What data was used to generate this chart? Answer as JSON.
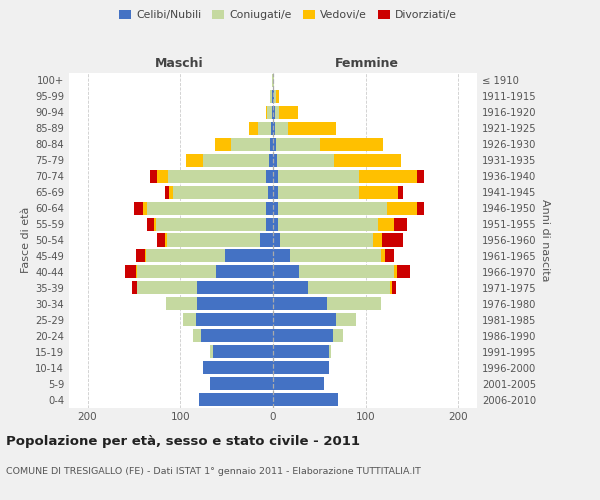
{
  "age_groups": [
    "0-4",
    "5-9",
    "10-14",
    "15-19",
    "20-24",
    "25-29",
    "30-34",
    "35-39",
    "40-44",
    "45-49",
    "50-54",
    "55-59",
    "60-64",
    "65-69",
    "70-74",
    "75-79",
    "80-84",
    "85-89",
    "90-94",
    "95-99",
    "100+"
  ],
  "birth_years": [
    "2006-2010",
    "2001-2005",
    "1996-2000",
    "1991-1995",
    "1986-1990",
    "1981-1985",
    "1976-1980",
    "1971-1975",
    "1966-1970",
    "1961-1965",
    "1956-1960",
    "1951-1955",
    "1946-1950",
    "1941-1945",
    "1936-1940",
    "1931-1935",
    "1926-1930",
    "1921-1925",
    "1916-1920",
    "1911-1915",
    "≤ 1910"
  ],
  "male": {
    "celibi": [
      80,
      68,
      75,
      65,
      78,
      83,
      82,
      82,
      62,
      52,
      14,
      8,
      8,
      5,
      8,
      4,
      3,
      2,
      1,
      1,
      0
    ],
    "coniugati": [
      0,
      0,
      0,
      3,
      8,
      14,
      33,
      65,
      85,
      85,
      100,
      118,
      128,
      103,
      105,
      72,
      42,
      14,
      5,
      2,
      1
    ],
    "vedovi": [
      0,
      0,
      0,
      0,
      0,
      0,
      0,
      0,
      1,
      1,
      2,
      2,
      4,
      4,
      12,
      18,
      18,
      10,
      2,
      0,
      0
    ],
    "divorziati": [
      0,
      0,
      0,
      0,
      0,
      0,
      0,
      5,
      12,
      10,
      9,
      8,
      10,
      5,
      8,
      0,
      0,
      0,
      0,
      0,
      0
    ]
  },
  "female": {
    "nubili": [
      70,
      55,
      60,
      60,
      65,
      68,
      58,
      38,
      28,
      18,
      8,
      5,
      5,
      5,
      5,
      4,
      3,
      2,
      2,
      1,
      0
    ],
    "coniugate": [
      0,
      0,
      0,
      3,
      10,
      22,
      58,
      88,
      103,
      98,
      100,
      108,
      118,
      88,
      88,
      62,
      48,
      14,
      5,
      2,
      1
    ],
    "vedove": [
      0,
      0,
      0,
      0,
      0,
      0,
      0,
      2,
      3,
      5,
      10,
      18,
      32,
      42,
      62,
      72,
      68,
      52,
      20,
      3,
      0
    ],
    "divorziate": [
      0,
      0,
      0,
      0,
      0,
      0,
      0,
      5,
      14,
      10,
      22,
      14,
      8,
      5,
      8,
      0,
      0,
      0,
      0,
      0,
      0
    ]
  },
  "colors": {
    "celibi": "#4472c4",
    "coniugati": "#c5d9a0",
    "vedovi": "#ffc000",
    "divorziati": "#cc0000"
  },
  "title": "Popolazione per età, sesso e stato civile - 2011",
  "subtitle": "COMUNE DI TRESIGALLO (FE) - Dati ISTAT 1° gennaio 2011 - Elaborazione TUTTITALIA.IT",
  "ylabel_left": "Fasce di età",
  "ylabel_right": "Anni di nascita",
  "xlabel_left": "Maschi",
  "xlabel_right": "Femmine",
  "xlim": 220,
  "bg_color": "#f0f0f0",
  "plot_bg": "#ffffff"
}
